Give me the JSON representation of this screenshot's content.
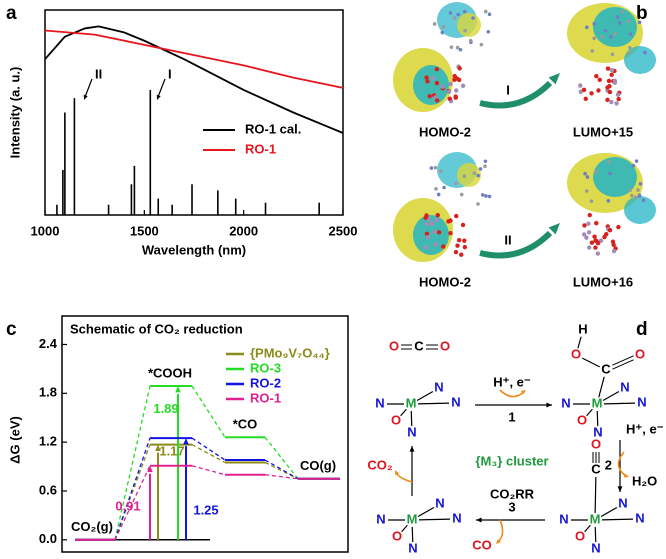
{
  "panel_labels": [
    "a",
    "b",
    "c",
    "d"
  ],
  "chart_data": [
    {
      "type": "line",
      "xlabel": "Wavelength (nm)",
      "ylabel": "Intensity (a. u.)",
      "xlim": [
        1000,
        2500
      ],
      "xticks": [
        1000,
        1500,
        2000,
        2500
      ],
      "ylim": [
        0,
        100
      ],
      "legend": "right",
      "series": [
        {
          "name": "RO-1 cal.",
          "color": "#000000",
          "x": [
            1000,
            1100,
            1200,
            1270,
            1400,
            1500,
            1700,
            2000,
            2250,
            2500
          ],
          "values": [
            76,
            87,
            91,
            92,
            89,
            85,
            76,
            61,
            50,
            40
          ]
        },
        {
          "name": "RO-1",
          "color": "#e8141e",
          "x": [
            1000,
            1250,
            1500,
            1750,
            2000,
            2250,
            2500
          ],
          "values": [
            90,
            88,
            83,
            78,
            73,
            67,
            62
          ]
        }
      ],
      "sticks": {
        "color": "#000000",
        "x": [
          1060,
          1090,
          1100,
          1148,
          1320,
          1435,
          1450,
          1530,
          1570,
          1640,
          1740,
          1870,
          1960,
          2110,
          2380
        ],
        "values": [
          5,
          22,
          50,
          57,
          5,
          15,
          24,
          61,
          8,
          5,
          15,
          12,
          8,
          6,
          6
        ]
      },
      "annotations": [
        "II",
        "I"
      ]
    },
    {
      "type": "energy-diagram",
      "title": "Schematic of CO₂ reduction",
      "ylabel": "ΔG (eV)",
      "categories": [
        "CO₂(g)",
        "*COOH",
        "*CO",
        "CO(g)"
      ],
      "ylim": [
        -0.15,
        2.75
      ],
      "yticks": [
        {
          "value": 0,
          "label": "0.0"
        },
        0.6,
        1.2,
        1.8,
        2.4
      ],
      "series": [
        {
          "name": "{PMo₉V₇O₄₄}",
          "color": "#8b8b1a",
          "values": [
            0,
            1.17,
            0.95,
            0.75
          ]
        },
        {
          "name": "RO-3",
          "color": "#22dd22",
          "values": [
            0,
            1.89,
            1.26,
            0.75
          ]
        },
        {
          "name": "RO-2",
          "color": "#1414e0",
          "values": [
            0,
            1.25,
            0.98,
            0.75
          ]
        },
        {
          "name": "RO-1",
          "color": "#e0208f",
          "values": [
            0,
            0.91,
            0.8,
            0.75
          ]
        }
      ]
    }
  ],
  "orbitals": {
    "transitions": [
      {
        "from": "HOMO-2",
        "to": "LUMO+15",
        "label": "I"
      },
      {
        "from": "HOMO-2",
        "to": "LUMO+16",
        "label": "II"
      }
    ]
  },
  "mechanism": {
    "center": [
      "{M₃} cluster",
      "CO₂RR"
    ],
    "complexes": [
      {
        "atoms": [
          "M",
          "N",
          "N",
          "N",
          "O",
          "N"
        ],
        "ligand": [
          "O",
          "C",
          "O"
        ]
      },
      {
        "atoms": [
          "M",
          "N",
          "N",
          "N",
          "O",
          "N"
        ],
        "ligand": [
          "C",
          "O",
          "O",
          "H"
        ]
      },
      {
        "atoms": [
          "M",
          "N",
          "N",
          "N",
          "O",
          "N"
        ],
        "ligand": [
          "C",
          "O"
        ]
      },
      {
        "atoms": [
          "M",
          "N",
          "N",
          "N",
          "O",
          "N"
        ]
      }
    ],
    "steps": [
      {
        "number": "1",
        "reagent": "H⁺, e⁻"
      },
      {
        "number": "2",
        "reagent": "H⁺, e⁻",
        "product": "H₂O"
      },
      {
        "number": "3",
        "product": "CO"
      },
      {
        "product": "CO₂"
      }
    ]
  }
}
